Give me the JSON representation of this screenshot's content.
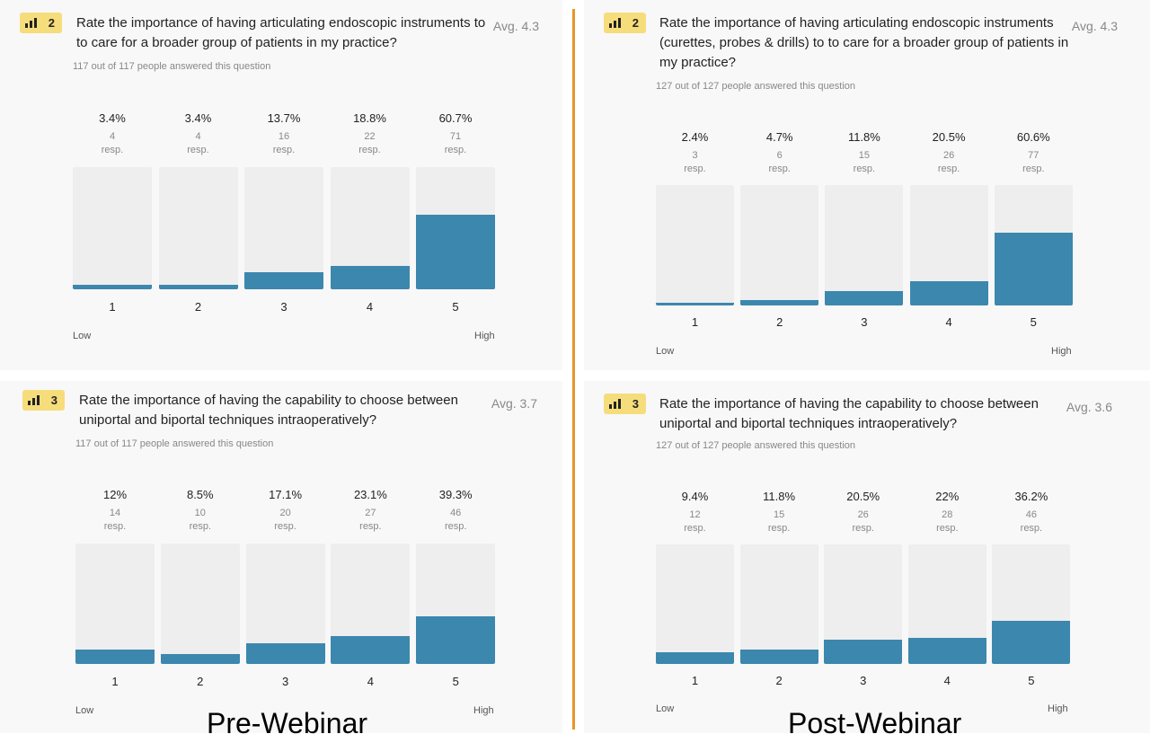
{
  "captions": {
    "pre": "Pre-Webinar",
    "post": "Post-Webinar"
  },
  "colors": {
    "bar_fill": "#3c87ae",
    "bar_track": "#eeeeee",
    "badge": "#f6dd7c",
    "divider": "#e8962a"
  },
  "panels": [
    {
      "badge_number": "2",
      "badge_icon": "bar-chart-icon",
      "question": "Rate the importance of having articulating endoscopic instruments to to care for a broader group of patients in my practice?",
      "avg": "Avg. 4.3",
      "answered": "117 out of 117 people answered this question",
      "low_label": "Low",
      "high_label": "High",
      "columns": [
        {
          "cat": "1",
          "pct": "3.4%",
          "count": "4",
          "resp": "resp.",
          "share": 0.034
        },
        {
          "cat": "2",
          "pct": "3.4%",
          "count": "4",
          "resp": "resp.",
          "share": 0.034
        },
        {
          "cat": "3",
          "pct": "13.7%",
          "count": "16",
          "resp": "resp.",
          "share": 0.137
        },
        {
          "cat": "4",
          "pct": "18.8%",
          "count": "22",
          "resp": "resp.",
          "share": 0.188
        },
        {
          "cat": "5",
          "pct": "60.7%",
          "count": "71",
          "resp": "resp.",
          "share": 0.607
        }
      ]
    },
    {
      "badge_number": "3",
      "badge_icon": "bar-chart-icon",
      "question": "Rate the importance of having the capability to choose between uniportal and biportal techniques intraoperatively?",
      "avg": "Avg. 3.7",
      "answered": "117 out of 117 people answered this question",
      "low_label": "Low",
      "high_label": "High",
      "columns": [
        {
          "cat": "1",
          "pct": "12%",
          "count": "14",
          "resp": "resp.",
          "share": 0.12
        },
        {
          "cat": "2",
          "pct": "8.5%",
          "count": "10",
          "resp": "resp.",
          "share": 0.085
        },
        {
          "cat": "3",
          "pct": "17.1%",
          "count": "20",
          "resp": "resp.",
          "share": 0.171
        },
        {
          "cat": "4",
          "pct": "23.1%",
          "count": "27",
          "resp": "resp.",
          "share": 0.231
        },
        {
          "cat": "5",
          "pct": "39.3%",
          "count": "46",
          "resp": "resp.",
          "share": 0.393
        }
      ]
    },
    {
      "badge_number": "2",
      "badge_icon": "bar-chart-icon",
      "question": "Rate the importance of having articulating endoscopic instruments (curettes, probes & drills) to to care for a broader group of patients in my practice?",
      "avg": "Avg. 4.3",
      "answered": "127 out of 127 people answered this question",
      "low_label": "Low",
      "high_label": "High",
      "columns": [
        {
          "cat": "1",
          "pct": "2.4%",
          "count": "3",
          "resp": "resp.",
          "share": 0.024
        },
        {
          "cat": "2",
          "pct": "4.7%",
          "count": "6",
          "resp": "resp.",
          "share": 0.047
        },
        {
          "cat": "3",
          "pct": "11.8%",
          "count": "15",
          "resp": "resp.",
          "share": 0.118
        },
        {
          "cat": "4",
          "pct": "20.5%",
          "count": "26",
          "resp": "resp.",
          "share": 0.205
        },
        {
          "cat": "5",
          "pct": "60.6%",
          "count": "77",
          "resp": "resp.",
          "share": 0.606
        }
      ]
    },
    {
      "badge_number": "3",
      "badge_icon": "bar-chart-icon",
      "question": "Rate the importance of having the capability to choose between uniportal and biportal techniques intraoperatively?",
      "avg": "Avg. 3.6",
      "answered": "127 out of 127 people answered this question",
      "low_label": "Low",
      "high_label": "High",
      "columns": [
        {
          "cat": "1",
          "pct": "9.4%",
          "count": "12",
          "resp": "resp.",
          "share": 0.094
        },
        {
          "cat": "2",
          "pct": "11.8%",
          "count": "15",
          "resp": "resp.",
          "share": 0.118
        },
        {
          "cat": "3",
          "pct": "20.5%",
          "count": "26",
          "resp": "resp.",
          "share": 0.205
        },
        {
          "cat": "4",
          "pct": "22%",
          "count": "28",
          "resp": "resp.",
          "share": 0.22
        },
        {
          "cat": "5",
          "pct": "36.2%",
          "count": "46",
          "resp": "resp.",
          "share": 0.362
        }
      ]
    }
  ],
  "chart_data": [
    {
      "type": "bar",
      "title": "Rate the importance of having articulating endoscopic instruments to to care for a broader group of patients in my practice?",
      "categories": [
        "1",
        "2",
        "3",
        "4",
        "5"
      ],
      "values": [
        3.4,
        3.4,
        13.7,
        18.8,
        60.7
      ],
      "counts": [
        4,
        4,
        16,
        22,
        71
      ],
      "xlabel": "",
      "ylabel": "",
      "ylim": [
        0,
        100
      ],
      "scale_labels": [
        "Low",
        "High"
      ],
      "grid": false
    },
    {
      "type": "bar",
      "title": "Rate the importance of having the capability to choose between uniportal and biportal techniques intraoperatively?",
      "categories": [
        "1",
        "2",
        "3",
        "4",
        "5"
      ],
      "values": [
        12,
        8.5,
        17.1,
        23.1,
        39.3
      ],
      "counts": [
        14,
        10,
        20,
        27,
        46
      ],
      "xlabel": "",
      "ylabel": "",
      "ylim": [
        0,
        100
      ],
      "scale_labels": [
        "Low",
        "High"
      ],
      "grid": false
    },
    {
      "type": "bar",
      "title": "Rate the importance of having articulating endoscopic instruments (curettes, probes & drills) to to care for a broader group of patients in my practice?",
      "categories": [
        "1",
        "2",
        "3",
        "4",
        "5"
      ],
      "values": [
        2.4,
        4.7,
        11.8,
        20.5,
        60.6
      ],
      "counts": [
        3,
        6,
        15,
        26,
        77
      ],
      "xlabel": "",
      "ylabel": "",
      "ylim": [
        0,
        100
      ],
      "scale_labels": [
        "Low",
        "High"
      ],
      "grid": false
    },
    {
      "type": "bar",
      "title": "Rate the importance of having the capability to choose between uniportal and biportal techniques intraoperatively?",
      "categories": [
        "1",
        "2",
        "3",
        "4",
        "5"
      ],
      "values": [
        9.4,
        11.8,
        20.5,
        22,
        36.2
      ],
      "counts": [
        12,
        15,
        26,
        28,
        46
      ],
      "xlabel": "",
      "ylabel": "",
      "ylim": [
        0,
        100
      ],
      "scale_labels": [
        "Low",
        "High"
      ],
      "grid": false
    }
  ]
}
